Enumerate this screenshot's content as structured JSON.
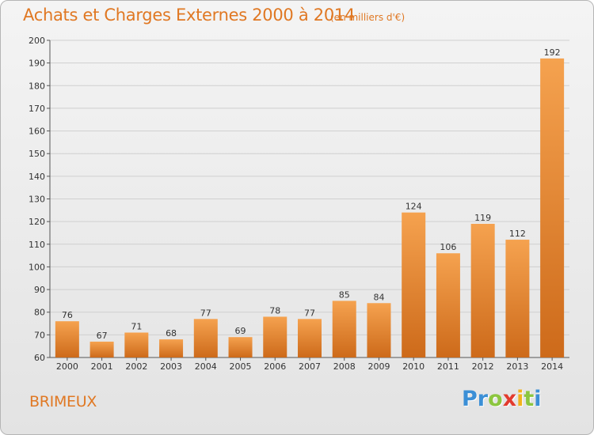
{
  "chart_data": {
    "type": "bar",
    "title": "Achats et Charges Externes 2000 à 2014",
    "subtitle": "(en milliers d'€)",
    "categories": [
      "2000",
      "2001",
      "2002",
      "2003",
      "2004",
      "2005",
      "2006",
      "2007",
      "2008",
      "2009",
      "2010",
      "2011",
      "2012",
      "2013",
      "2014"
    ],
    "values": [
      76,
      67,
      71,
      68,
      77,
      69,
      78,
      77,
      85,
      84,
      124,
      106,
      119,
      112,
      192
    ],
    "ylim": [
      60,
      200
    ],
    "yticks": [
      60,
      70,
      80,
      90,
      100,
      110,
      120,
      130,
      140,
      150,
      160,
      170,
      180,
      190,
      200
    ],
    "grid": true,
    "bar_color_top": "#f5a24f",
    "bar_color_bottom": "#cd6a1a"
  },
  "location": "BRIMEUX",
  "logo": {
    "letters": [
      "P",
      "r",
      "o",
      "x",
      "i",
      "t",
      "i"
    ],
    "colors": [
      "#3b8fd6",
      "#3b8fd6",
      "#8cc63f",
      "#e23b2e",
      "#f2b21b",
      "#8cc63f",
      "#3b8fd6"
    ]
  }
}
